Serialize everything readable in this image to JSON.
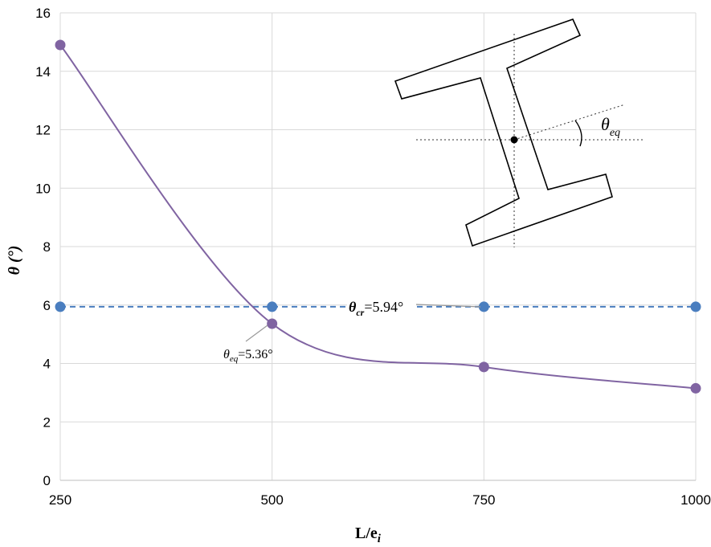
{
  "chart_data": {
    "type": "line",
    "x": [
      250,
      500,
      750,
      1000
    ],
    "xlabel": "L/e",
    "xlabel_sub": "i",
    "ylabel": "θ (°)",
    "xlim": [
      250,
      1000
    ],
    "ylim": [
      0,
      16
    ],
    "x_ticks": [
      "250",
      "500",
      "750",
      "1000"
    ],
    "y_ticks": [
      "0",
      "2",
      "4",
      "6",
      "8",
      "10",
      "12",
      "14",
      "16"
    ],
    "grid": true,
    "series": [
      {
        "key": "theta_eq",
        "values": [
          14.9,
          5.36,
          3.88,
          3.15
        ],
        "color": "#8064a2",
        "style": "smooth-solid"
      },
      {
        "key": "theta_cr",
        "values": [
          5.94,
          5.94,
          5.94,
          5.94
        ],
        "color": "#4a7ebf",
        "style": "dashed"
      }
    ],
    "annotations": {
      "theta_cr": {
        "symbol": "θ",
        "sub": "cr",
        "value": "=5.94°"
      },
      "theta_eq": {
        "symbol": "θ",
        "sub": "eq",
        "value": "=5.36°"
      },
      "inset_label": {
        "symbol": "θ",
        "sub": "eq"
      }
    }
  }
}
